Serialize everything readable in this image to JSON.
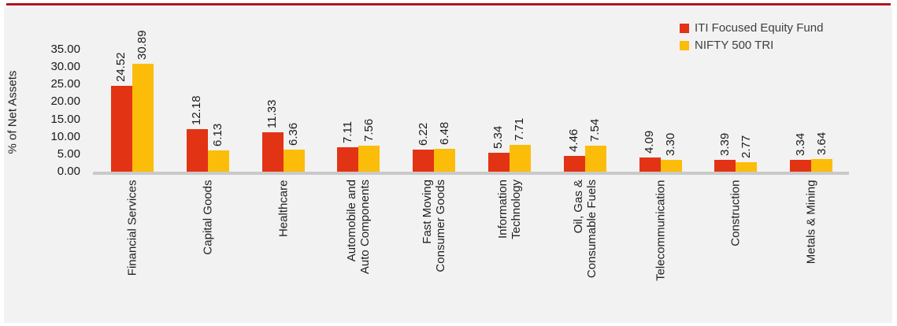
{
  "accent": {
    "top_line_color": "#B5121F",
    "panel_background": "#F2F2F3",
    "axis_line_color": "#C9C9C9"
  },
  "chart_data": {
    "type": "bar",
    "title": "",
    "ylabel": "% of Net Assets",
    "xlabel": "",
    "ylim": [
      0,
      35
    ],
    "ytick_step": 5,
    "yticks": [
      "35.00",
      "30.00",
      "25.00",
      "20.00",
      "15.00",
      "10.00",
      "5.00",
      "0.00"
    ],
    "grid": false,
    "legend_position": "top-right",
    "value_labels": "rotated-90-above-bars",
    "category_labels": "rotated-90-below-axis",
    "categories": [
      [
        "Financial Services"
      ],
      [
        "Capital Goods"
      ],
      [
        "Healthcare"
      ],
      [
        "Automobile and",
        "Auto Components"
      ],
      [
        "Fast Moving",
        "Consumer Goods"
      ],
      [
        "Information",
        "Technology"
      ],
      [
        "Oil, Gas &",
        "Consumable Fuels"
      ],
      [
        "Telecommunication"
      ],
      [
        "Construction"
      ],
      [
        "Metals & Mining"
      ]
    ],
    "series": [
      {
        "name": "ITI Focused Equity Fund",
        "color": "#E23315",
        "values": [
          24.52,
          12.18,
          11.33,
          7.11,
          6.22,
          5.34,
          4.46,
          4.09,
          3.39,
          3.34
        ]
      },
      {
        "name": "NIFTY 500 TRI",
        "color": "#FBBD09",
        "values": [
          30.89,
          6.13,
          6.36,
          7.56,
          6.48,
          7.71,
          7.54,
          3.3,
          2.77,
          3.64
        ]
      }
    ]
  }
}
